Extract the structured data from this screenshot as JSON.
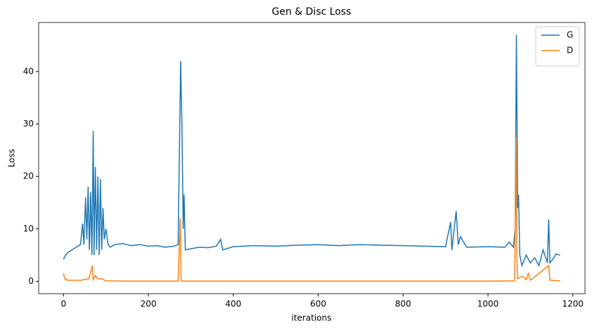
{
  "chart_data": {
    "type": "line",
    "title": "Gen & Disc Loss",
    "xlabel": "iterations",
    "ylabel": "Loss",
    "xlim": [
      -58.5,
      1228.5
    ],
    "ylim": [
      -2.35,
      49.35
    ],
    "xticks": [
      0,
      200,
      400,
      600,
      800,
      1000,
      1200
    ],
    "yticks": [
      0,
      10,
      20,
      30,
      40
    ],
    "legend": "upper right",
    "series": [
      {
        "name": "G",
        "color": "#1f77b4",
        "x": [
          0,
          5,
          10,
          20,
          30,
          40,
          45,
          48,
          52,
          55,
          58,
          61,
          64,
          67,
          70,
          72,
          75,
          78,
          81,
          84,
          87,
          90,
          93,
          96,
          100,
          105,
          110,
          120,
          140,
          160,
          180,
          200,
          220,
          240,
          260,
          270,
          276,
          279,
          282,
          284,
          287,
          300,
          320,
          340,
          360,
          370,
          375,
          400,
          450,
          500,
          550,
          600,
          650,
          700,
          750,
          800,
          850,
          900,
          912,
          915,
          925,
          930,
          935,
          950,
          1000,
          1040,
          1050,
          1060,
          1064,
          1067,
          1070,
          1072,
          1075,
          1080,
          1090,
          1100,
          1110,
          1120,
          1130,
          1140,
          1143,
          1146,
          1155,
          1160,
          1170
        ],
        "values": [
          4.2,
          5,
          5.5,
          6,
          6.5,
          7,
          11,
          7,
          16,
          8,
          18,
          6,
          17,
          5,
          28.7,
          5,
          21.8,
          6,
          20,
          5,
          19.5,
          6,
          14,
          8,
          10,
          7,
          6.5,
          7,
          7.2,
          6.8,
          7,
          6.7,
          6.8,
          6.5,
          6.7,
          7,
          42,
          30,
          10,
          16.5,
          6,
          6.2,
          6.5,
          6.4,
          6.7,
          8,
          6,
          6.6,
          6.8,
          6.7,
          6.9,
          7,
          6.8,
          7,
          6.9,
          6.8,
          6.7,
          6.6,
          11.3,
          6,
          13.4,
          7,
          8.5,
          6.5,
          6.6,
          6.5,
          7.5,
          6.5,
          10,
          47,
          14,
          16.5,
          5,
          3,
          5,
          3.5,
          4.5,
          3,
          6,
          3.5,
          11.8,
          3.5,
          4.5,
          5.2,
          5
        ]
      },
      {
        "name": "D",
        "color": "#ff7f0e",
        "x": [
          0,
          3,
          10,
          40,
          60,
          68,
          70,
          75,
          80,
          90,
          100,
          150,
          270,
          275,
          277,
          280,
          500,
          1000,
          1063,
          1066,
          1068,
          1070,
          1080,
          1090,
          1095,
          1100,
          1143,
          1146,
          1170
        ],
        "values": [
          1.5,
          0.5,
          0.2,
          0.2,
          0.5,
          3,
          0.3,
          1.1,
          0.5,
          0.5,
          0.1,
          0.05,
          0.05,
          12,
          0.2,
          0.05,
          0.05,
          0.05,
          0.1,
          27.5,
          5,
          0.5,
          1,
          0.3,
          1.5,
          0.2,
          3,
          0.2,
          0.1
        ]
      }
    ]
  }
}
